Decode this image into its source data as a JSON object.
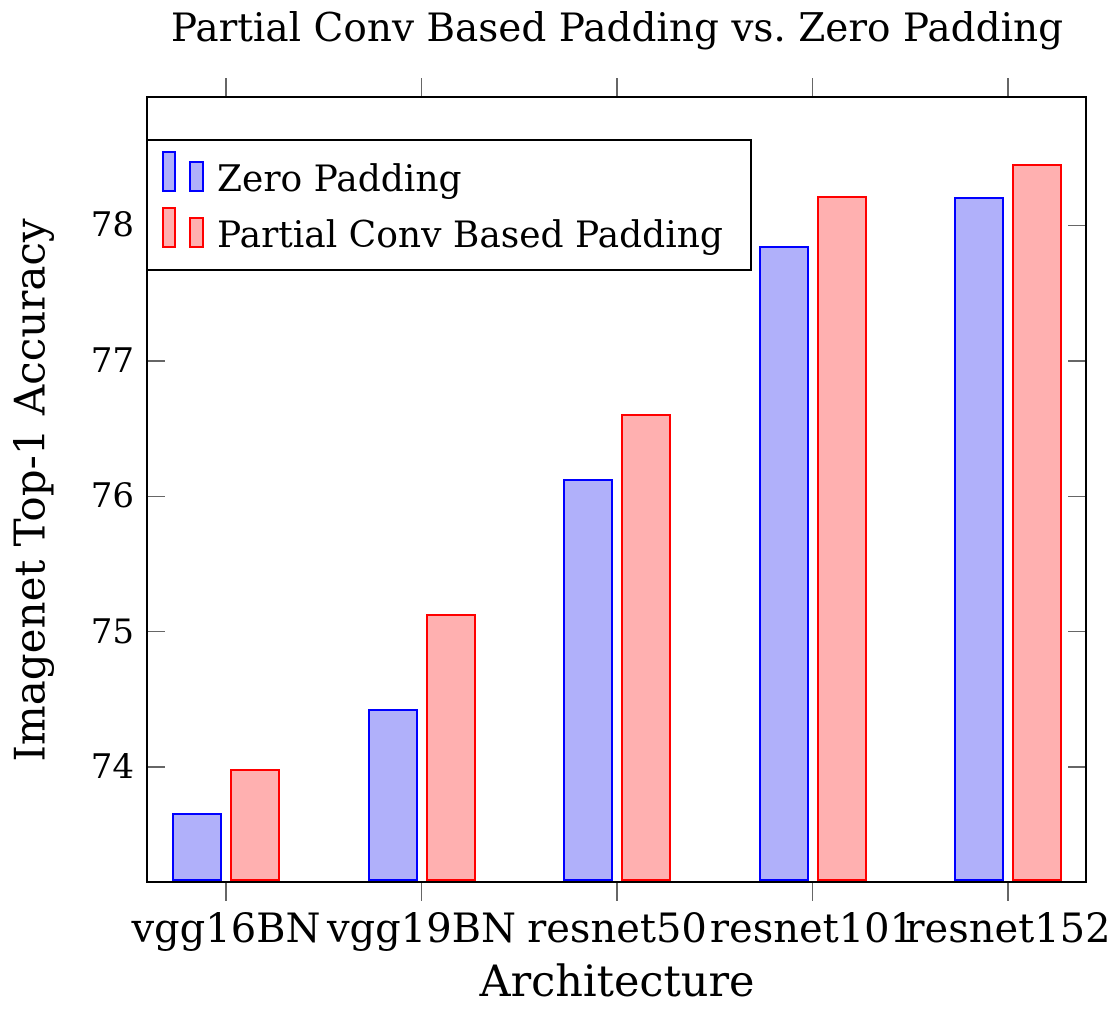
{
  "chart_data": {
    "type": "bar",
    "title": "Partial Conv Based Padding vs. Zero Padding",
    "xlabel": "Architecture",
    "ylabel": "Imagenet Top-1 Accuracy",
    "categories": [
      "vgg16BN",
      "vgg19BN",
      "resnet50",
      "resnet101",
      "resnet152"
    ],
    "series": [
      {
        "name": "Zero Padding",
        "values": [
          73.66,
          74.43,
          76.13,
          77.85,
          78.21
        ],
        "fill": "#b0b0fa",
        "stroke": "#0000ff"
      },
      {
        "name": "Partial Conv Based Padding",
        "values": [
          73.99,
          75.13,
          76.61,
          78.22,
          78.45
        ],
        "fill": "#ffb0b0",
        "stroke": "#ff0000"
      }
    ],
    "yticks": [
      74,
      75,
      76,
      77,
      78
    ],
    "ylim": [
      73.16,
      78.94
    ],
    "grid": false,
    "legend_position": "top-left",
    "colors": {
      "axis": "#000000",
      "tick": "#666666",
      "background": "#ffffff"
    }
  }
}
